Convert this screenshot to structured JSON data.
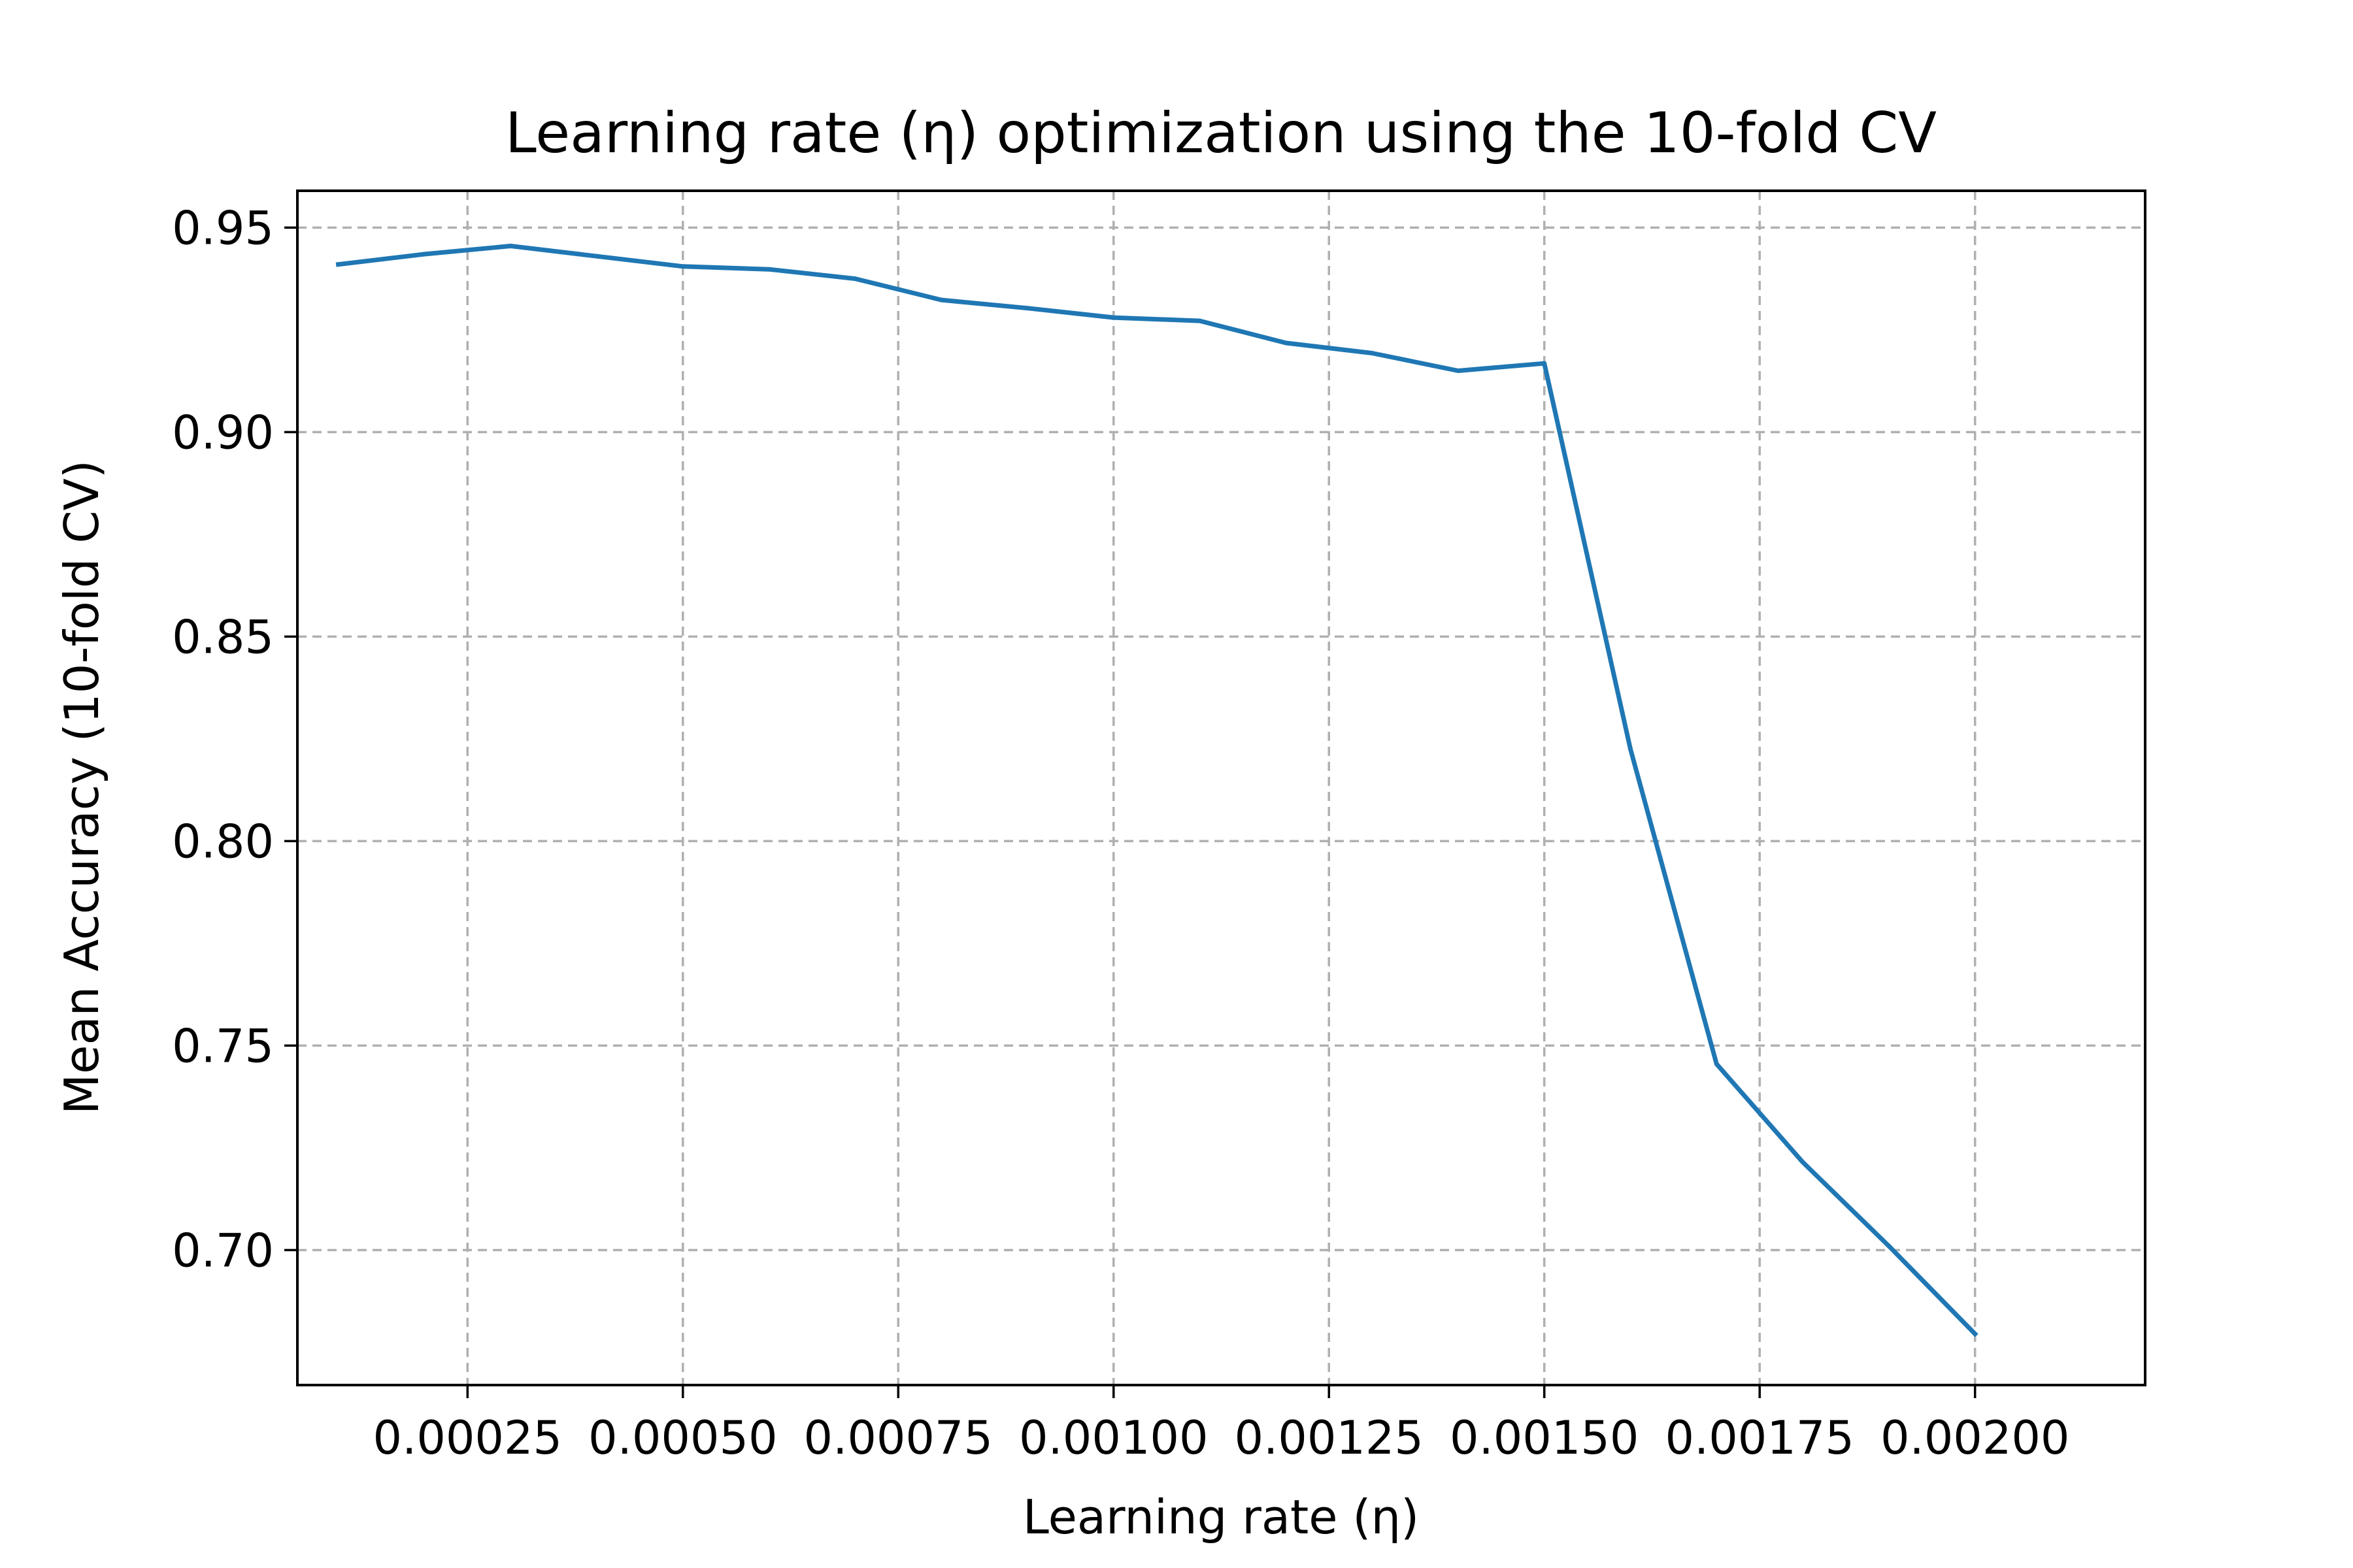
{
  "chart_data": {
    "type": "line",
    "title": "Learning rate (η) optimization using the 10-fold CV",
    "xlabel": "Learning rate (η)",
    "ylabel": "Mean Accuracy (10-fold CV)",
    "xlim": [
      5.25e-05,
      0.0021975
    ],
    "ylim": [
      0.667,
      0.959
    ],
    "x_ticks": [
      0.00025,
      0.0005,
      0.00075,
      0.001,
      0.00125,
      0.0015,
      0.00175,
      0.002
    ],
    "x_tick_labels": [
      "0.00025",
      "0.00050",
      "0.00075",
      "0.00100",
      "0.00125",
      "0.00150",
      "0.00175",
      "0.00200"
    ],
    "y_ticks": [
      0.7,
      0.75,
      0.8,
      0.85,
      0.9,
      0.95
    ],
    "y_tick_labels": [
      "0.70",
      "0.75",
      "0.80",
      "0.85",
      "0.90",
      "0.95"
    ],
    "grid": true,
    "series": [
      {
        "color": "#1f77b4",
        "x": [
          0.0001,
          0.0002,
          0.0003,
          0.0004,
          0.0005,
          0.0006,
          0.0007,
          0.0008,
          0.0009,
          0.001,
          0.0011,
          0.0012,
          0.0013,
          0.0014,
          0.0015,
          0.0016,
          0.0017,
          0.0018,
          0.0019,
          0.002
        ],
        "y": [
          0.941,
          0.9435,
          0.9455,
          0.943,
          0.9405,
          0.9398,
          0.9375,
          0.9323,
          0.9303,
          0.928,
          0.9272,
          0.9218,
          0.9193,
          0.915,
          0.9168,
          0.8225,
          0.7455,
          0.7215,
          0.701,
          0.6795
        ]
      }
    ]
  }
}
